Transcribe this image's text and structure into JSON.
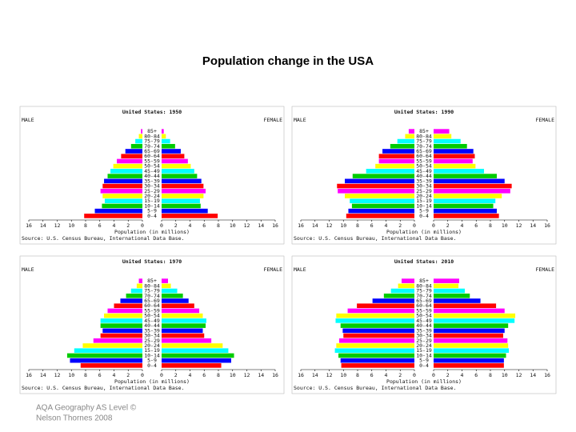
{
  "title": "Population change in the USA",
  "footer": [
    "AQA Geography AS Level ©",
    "Nelson Thornes 2008"
  ],
  "chart_data": [
    {
      "type": "pyramid",
      "title": "United States: 1950",
      "categories": [
        "0-4",
        "5-9",
        "10-14",
        "15-19",
        "20-24",
        "25-29",
        "30-34",
        "35-39",
        "40-44",
        "45-49",
        "50-54",
        "55-59",
        "60-64",
        "65-69",
        "70-74",
        "75-79",
        "80-84",
        "85+"
      ],
      "series": [
        {
          "name": "MALE",
          "values": [
            8.2,
            6.7,
            5.7,
            5.3,
            5.6,
            5.9,
            5.6,
            5.4,
            4.9,
            4.5,
            4.1,
            3.6,
            3.0,
            2.4,
            1.6,
            1.0,
            0.5,
            0.2
          ]
        },
        {
          "name": "FEMALE",
          "values": [
            7.9,
            6.5,
            5.5,
            5.4,
            5.9,
            6.2,
            5.9,
            5.6,
            5.0,
            4.6,
            4.1,
            3.7,
            3.2,
            2.7,
            1.9,
            1.2,
            0.6,
            0.3
          ]
        }
      ],
      "colors": [
        "#ff0000",
        "#0000ff",
        "#00cc00",
        "#00ffff",
        "#ffff00",
        "#ff00ff"
      ],
      "xlim": [
        0,
        16
      ],
      "xticks": [
        0,
        2,
        4,
        6,
        8,
        10,
        12,
        14,
        16
      ],
      "xlabel": "Population (in millions)",
      "source": "Source: U.S. Census Bureau, International Data Base."
    },
    {
      "type": "pyramid",
      "title": "United States: 1990",
      "categories": [
        "0-4",
        "5-9",
        "10-14",
        "15-19",
        "20-24",
        "25-29",
        "30-34",
        "35-39",
        "40-44",
        "45-49",
        "50-54",
        "55-59",
        "60-64",
        "65-69",
        "70-74",
        "75-79",
        "80-84",
        "85+"
      ],
      "series": [
        {
          "name": "MALE",
          "values": [
            9.6,
            9.3,
            8.8,
            9.1,
            9.8,
            10.8,
            10.9,
            9.8,
            8.7,
            6.8,
            5.5,
            5.0,
            5.0,
            4.5,
            3.4,
            2.4,
            1.3,
            0.8
          ]
        },
        {
          "name": "FEMALE",
          "values": [
            9.2,
            8.9,
            8.4,
            8.7,
            9.6,
            10.8,
            11.0,
            10.0,
            8.9,
            7.1,
            5.9,
            5.5,
            5.8,
            5.6,
            4.7,
            3.8,
            2.5,
            2.2
          ]
        }
      ],
      "colors": [
        "#ff0000",
        "#0000ff",
        "#00cc00",
        "#00ffff",
        "#ffff00",
        "#ff00ff"
      ],
      "xlim": [
        0,
        16
      ],
      "xticks": [
        0,
        2,
        4,
        6,
        8,
        10,
        12,
        14,
        16
      ],
      "xlabel": "Population (in millions)",
      "source": "Source: U.S. Census Bureau, International Data Base."
    },
    {
      "type": "pyramid",
      "title": "United States: 1970",
      "categories": [
        "0-4",
        "5-9",
        "10-14",
        "15-19",
        "20-24",
        "25-29",
        "30-34",
        "35-39",
        "40-44",
        "45-49",
        "50-54",
        "55-59",
        "60-64",
        "65-69",
        "70-74",
        "75-79",
        "80-84",
        "85+"
      ],
      "series": [
        {
          "name": "MALE",
          "values": [
            8.7,
            10.2,
            10.6,
            9.6,
            8.4,
            6.9,
            5.9,
            5.6,
            5.9,
            5.9,
            5.4,
            4.9,
            4.0,
            3.1,
            2.3,
            1.6,
            0.8,
            0.5
          ]
        },
        {
          "name": "FEMALE",
          "values": [
            8.4,
            9.8,
            10.2,
            9.4,
            8.6,
            7.0,
            6.0,
            5.8,
            6.2,
            6.3,
            5.8,
            5.3,
            4.6,
            3.8,
            3.0,
            2.2,
            1.3,
            0.9
          ]
        }
      ],
      "colors": [
        "#ff0000",
        "#0000ff",
        "#00cc00",
        "#00ffff",
        "#ffff00",
        "#ff00ff"
      ],
      "xlim": [
        0,
        16
      ],
      "xticks": [
        0,
        2,
        4,
        6,
        8,
        10,
        12,
        14,
        16
      ],
      "xlabel": "Population (in millions)",
      "source": "Source: U.S. Census Bureau, International Data Base."
    },
    {
      "type": "pyramid",
      "title": "United States: 2010",
      "categories": [
        "0-4",
        "5-9",
        "10-14",
        "15-19",
        "20-24",
        "25-29",
        "30-34",
        "35-39",
        "40-44",
        "45-49",
        "50-54",
        "55-59",
        "60-64",
        "65-69",
        "70-74",
        "75-79",
        "80-84",
        "85+"
      ],
      "series": [
        {
          "name": "MALE",
          "values": [
            10.3,
            10.4,
            10.7,
            11.2,
            11.0,
            10.6,
            10.0,
            10.1,
            10.4,
            11.1,
            11.0,
            9.4,
            8.1,
            5.9,
            4.3,
            3.3,
            2.3,
            1.8
          ]
        },
        {
          "name": "FEMALE",
          "values": [
            9.9,
            9.9,
            10.2,
            10.6,
            10.5,
            10.4,
            9.8,
            10.0,
            10.5,
            11.4,
            11.5,
            10.0,
            8.8,
            6.6,
            5.1,
            4.4,
            3.5,
            3.6
          ]
        }
      ],
      "colors": [
        "#ff0000",
        "#0000ff",
        "#00cc00",
        "#00ffff",
        "#ffff00",
        "#ff00ff"
      ],
      "xlim": [
        0,
        16
      ],
      "xticks": [
        0,
        2,
        4,
        6,
        8,
        10,
        12,
        14,
        16
      ],
      "xlabel": "Population (in millions)",
      "source": "Source: U.S. Census Bureau, International Data Base."
    }
  ]
}
